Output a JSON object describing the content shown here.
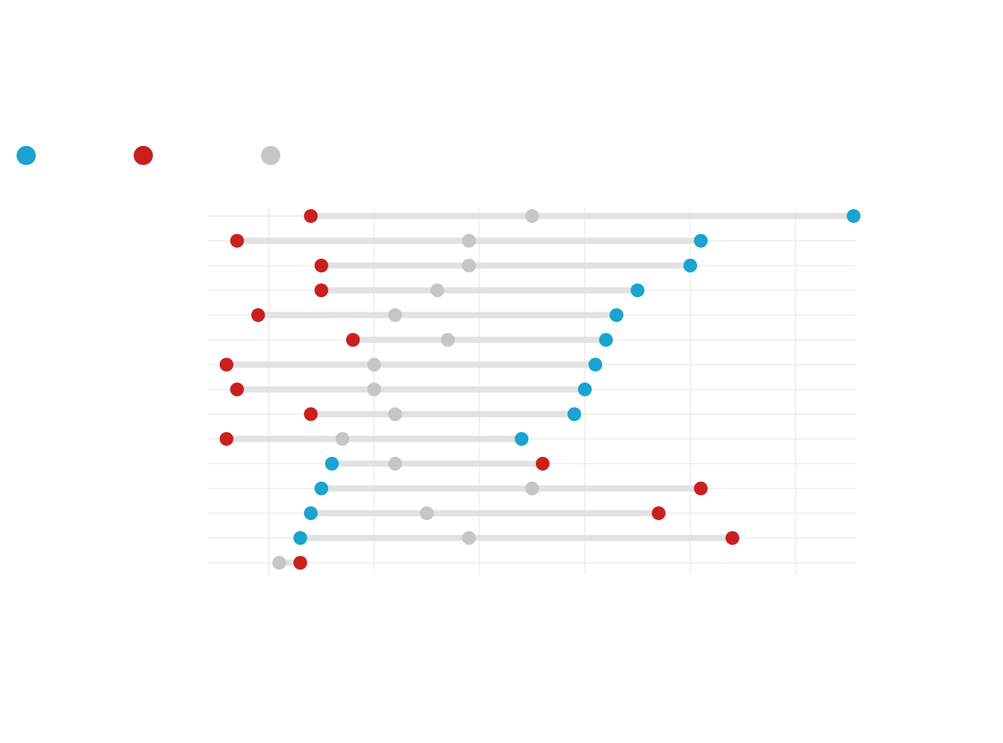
{
  "colors": {
    "blue": "#1ba3d1",
    "red": "#c9201f",
    "gray_dot": "#c6c6c6",
    "range_bar": "#e2e2e2",
    "grid": "#ebebeb"
  },
  "legend": {
    "items": [
      {
        "color": "blue"
      },
      {
        "color": "red"
      },
      {
        "color": "gray_dot"
      }
    ]
  },
  "chart_data": {
    "type": "dumbbell",
    "title": "",
    "xlabel": "",
    "ylabel": "",
    "xlim": [
      -0.58,
      5.58
    ],
    "x_gridlines": [
      0,
      1,
      2,
      3,
      4,
      5
    ],
    "rows": [
      {
        "blue": 5.55,
        "red": 0.4,
        "gray": 2.5
      },
      {
        "blue": 4.1,
        "red": -0.3,
        "gray": 1.9
      },
      {
        "blue": 4.0,
        "red": 0.5,
        "gray": 1.9
      },
      {
        "blue": 3.5,
        "red": 0.5,
        "gray": 1.6
      },
      {
        "blue": 3.3,
        "red": -0.1,
        "gray": 1.2
      },
      {
        "blue": 3.2,
        "red": 0.8,
        "gray": 1.7
      },
      {
        "blue": 3.1,
        "red": -0.4,
        "gray": 1.0
      },
      {
        "blue": 3.0,
        "red": -0.3,
        "gray": 1.0
      },
      {
        "blue": 2.9,
        "red": 0.4,
        "gray": 1.2
      },
      {
        "blue": 2.4,
        "red": -0.4,
        "gray": 0.7
      },
      {
        "blue": 0.6,
        "red": 2.6,
        "gray": 1.2
      },
      {
        "blue": 0.5,
        "red": 4.1,
        "gray": 2.5
      },
      {
        "blue": 0.4,
        "red": 3.7,
        "gray": 1.5
      },
      {
        "blue": 0.3,
        "red": 4.4,
        "gray": 1.9
      },
      {
        "blue": null,
        "red": 0.3,
        "gray": 0.1
      }
    ]
  }
}
